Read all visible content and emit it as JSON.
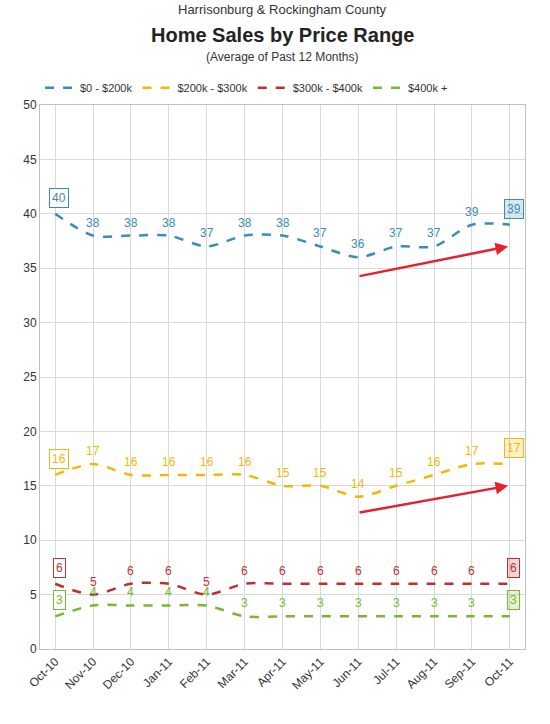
{
  "chart_data": {
    "type": "line",
    "header": "Harrisonburg & Rockingham County",
    "title": "Home Sales by Price Range",
    "subtitle": "(Average of Past 12 Months)",
    "categories": [
      "Oct-10",
      "Nov-10",
      "Dec-10",
      "Jan-11",
      "Feb-11",
      "Mar-11",
      "Apr-11",
      "May-11",
      "Jun-11",
      "Jul-11",
      "Aug-11",
      "Sep-11",
      "Oct-11"
    ],
    "series": [
      {
        "name": "$0 - $200k",
        "color": "#3a8db3",
        "values": [
          40,
          38,
          38,
          38,
          37,
          38,
          38,
          37,
          36,
          37,
          37,
          39,
          39
        ]
      },
      {
        "name": "$200k - $300k",
        "color": "#f2b705",
        "values": [
          16,
          17,
          16,
          16,
          16,
          16,
          15,
          15,
          14,
          15,
          16,
          17,
          17
        ]
      },
      {
        "name": "$300k - $400k",
        "color": "#b83232",
        "values": [
          6,
          5,
          6,
          6,
          5,
          6,
          6,
          6,
          6,
          6,
          6,
          6,
          6
        ]
      },
      {
        "name": "$400k +",
        "color": "#7ab730",
        "values": [
          3,
          4,
          4,
          4,
          4,
          3,
          3,
          3,
          3,
          3,
          3,
          3,
          3
        ]
      }
    ],
    "ylim": [
      0,
      50
    ],
    "yticks": [
      0,
      5,
      10,
      15,
      20,
      25,
      30,
      35,
      40,
      45,
      50
    ],
    "grid": true,
    "legend": "top",
    "data_labels": true,
    "line_style": "dash",
    "marker": "none"
  }
}
